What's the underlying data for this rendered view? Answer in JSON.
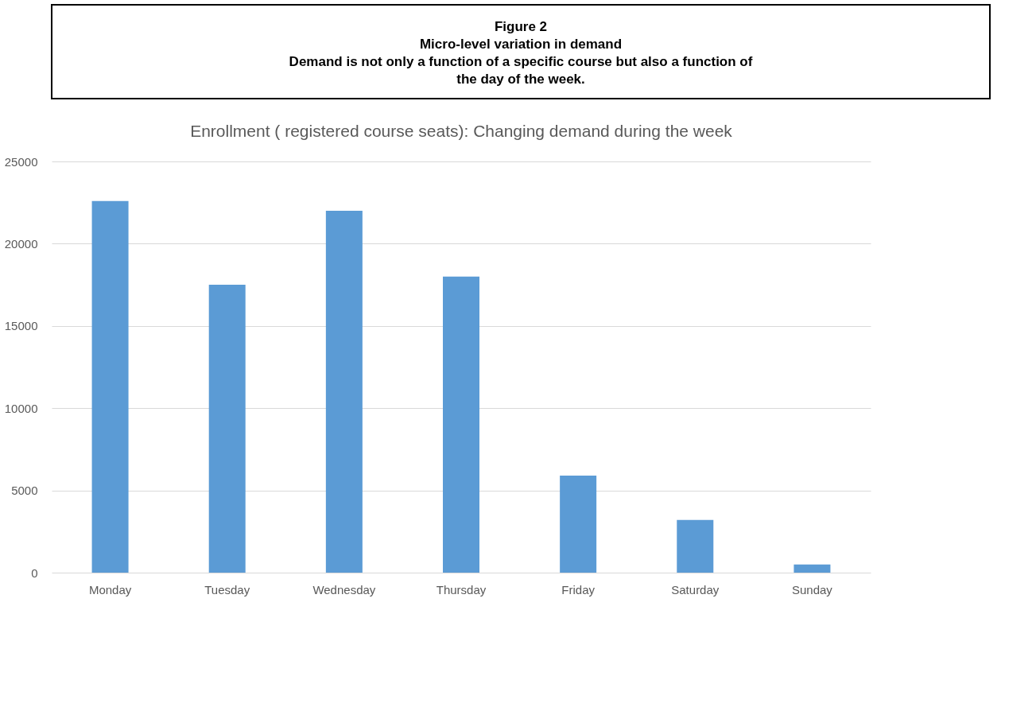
{
  "chart_data": {
    "type": "bar",
    "title": "Enrollment ( registered course seats): Changing demand during the week",
    "annotations": [
      "Figure 2",
      "Micro-level variation in demand",
      "Demand is not only a function of a specific course but also a function of the day of the week."
    ],
    "categories": [
      "Monday",
      "Tuesday",
      "Wednesday",
      "Thursday",
      "Friday",
      "Saturday",
      "Sunday"
    ],
    "values": [
      22600,
      17500,
      22000,
      18000,
      5900,
      3200,
      500
    ],
    "color": "#5b9bd5",
    "ylim": [
      0,
      25000
    ],
    "yticks": [
      0,
      5000,
      10000,
      15000,
      20000,
      25000
    ],
    "grid": "y"
  }
}
